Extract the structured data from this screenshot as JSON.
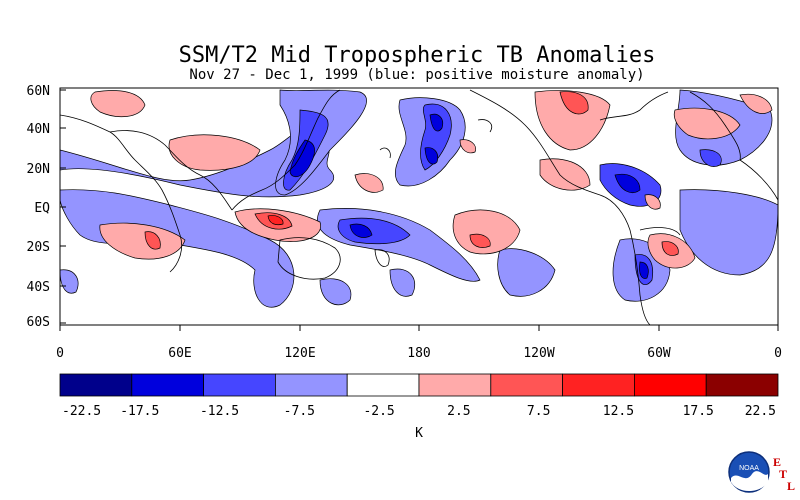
{
  "title": "SSM/T2 Mid Tropospheric TB Anomalies",
  "subtitle": "Nov 27 - Dec 1, 1999 (blue: positive moisture anomaly)",
  "map": {
    "lat_labels": [
      "60N",
      "40N",
      "20N",
      "EQ",
      "20S",
      "40S",
      "60S"
    ],
    "lon_labels": [
      "0",
      "60E",
      "120E",
      "180",
      "120W",
      "60W",
      "0"
    ]
  },
  "colorbar": {
    "colors": [
      "#00008b",
      "#0000dd",
      "#4646ff",
      "#9494ff",
      "#ffffff",
      "#ffaaaa",
      "#ff5555",
      "#ff2222",
      "#ff0000",
      "#8b0000"
    ],
    "tick_labels": [
      "-22.5",
      "-17.5",
      "-12.5",
      "-7.5",
      "-2.5",
      "2.5",
      "7.5",
      "12.5",
      "17.5",
      "22.5"
    ],
    "unit": "K"
  },
  "logo": {
    "text": "NOAA",
    "etl_letters": [
      "E",
      "T",
      "L"
    ],
    "etl_color": "#cc0000",
    "seal_color": "#1a4fb5"
  }
}
